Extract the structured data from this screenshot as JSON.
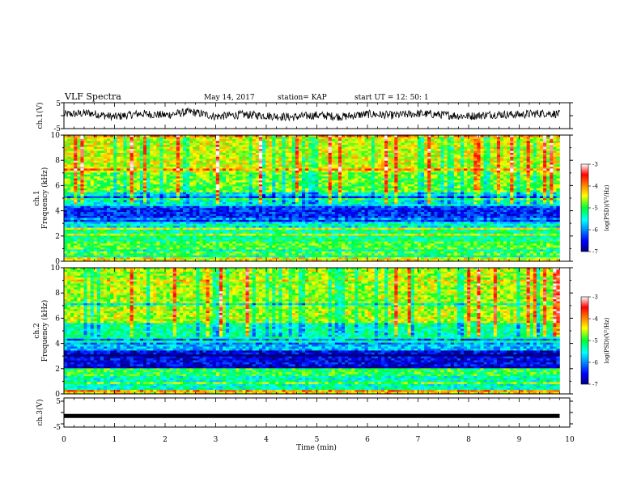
{
  "header": {
    "title": "VLF Spectra",
    "date": "May 14, 2017",
    "station": "station= KAP",
    "start": "start  UT =   12: 50: 1"
  },
  "chart_data": [
    {
      "type": "line",
      "panel": "ch1-waveform",
      "ylabel": "ch.1(V)",
      "ylim": [
        -5,
        5
      ],
      "yticks": [
        "5",
        "-5"
      ],
      "xlim": [
        0,
        10
      ],
      "note": "noisy black voltage trace fluctuating roughly between -3 and 3 V from 0 to ~9.8 min",
      "series": [
        {
          "color": "#000000",
          "x": [
            0,
            0.5,
            1,
            1.5,
            2,
            2.5,
            3,
            3.5,
            4,
            4.5,
            5,
            5.5,
            6,
            6.5,
            7,
            7.5,
            8,
            8.5,
            9,
            9.5,
            9.8
          ],
          "y": [
            0.5,
            1.0,
            -0.5,
            0.8,
            0.2,
            1.5,
            -0.3,
            0.4,
            0.0,
            -0.6,
            0.2,
            -0.4,
            0.6,
            0.1,
            0.8,
            0.3,
            -0.2,
            0.5,
            0.4,
            1.0,
            0.6
          ]
        }
      ]
    },
    {
      "type": "heatmap",
      "panel": "ch1-spectrogram",
      "ylabel": "ch.1\nFrequency (kHz)",
      "xlim": [
        0,
        10
      ],
      "ylim": [
        0,
        10
      ],
      "yticks": [
        "0",
        "2",
        "4",
        "6",
        "8",
        "10"
      ],
      "colorbar": {
        "label": "log(PSD)(V²/Hz)",
        "ticks": [
          "-3",
          "-4",
          "-5",
          "-6",
          "-7"
        ],
        "range": [
          -7,
          -3
        ]
      },
      "time_extent_min": 9.8,
      "bands_khz": [
        {
          "from": 0.0,
          "to": 0.3,
          "level": -4.4
        },
        {
          "from": 0.3,
          "to": 1.6,
          "level": -4.9
        },
        {
          "from": 1.6,
          "to": 2.6,
          "level": -5.2
        },
        {
          "from": 2.6,
          "to": 3.3,
          "level": -5.6
        },
        {
          "from": 3.3,
          "to": 4.2,
          "level": -6.4
        },
        {
          "from": 4.2,
          "to": 5.4,
          "level": -5.5
        },
        {
          "from": 5.4,
          "to": 7.0,
          "level": -4.8
        },
        {
          "from": 7.0,
          "to": 10.0,
          "level": -4.5
        }
      ]
    },
    {
      "type": "heatmap",
      "panel": "ch2-spectrogram",
      "ylabel": "ch.2\nFrequency (kHz)",
      "xlim": [
        0,
        10
      ],
      "ylim": [
        0,
        10
      ],
      "yticks": [
        "0",
        "2",
        "4",
        "6",
        "8",
        "10"
      ],
      "colorbar": {
        "label": "log(PSD)(V²/Hz)",
        "ticks": [
          "-3",
          "-4",
          "-5",
          "-6",
          "-7"
        ],
        "range": [
          -7,
          -3
        ]
      },
      "time_extent_min": 9.8,
      "bands_khz": [
        {
          "from": 0.0,
          "to": 0.3,
          "level": -4.4
        },
        {
          "from": 0.3,
          "to": 1.4,
          "level": -5.4
        },
        {
          "from": 1.4,
          "to": 2.0,
          "level": -5.0
        },
        {
          "from": 2.0,
          "to": 3.5,
          "level": -6.6
        },
        {
          "from": 3.5,
          "to": 4.1,
          "level": -5.8
        },
        {
          "from": 4.1,
          "to": 5.6,
          "level": -5.3
        },
        {
          "from": 5.6,
          "to": 10.0,
          "level": -4.6
        }
      ]
    },
    {
      "type": "line",
      "panel": "ch3-waveform",
      "ylabel": "ch.3(V)",
      "ylim": [
        -5,
        5
      ],
      "yticks": [
        "5",
        "-5"
      ],
      "xlim": [
        0,
        10
      ],
      "xlabel": "Time (min)",
      "xticks": [
        "0",
        "1",
        "2",
        "3",
        "4",
        "5",
        "6",
        "7",
        "8",
        "9",
        "10"
      ],
      "series": [
        {
          "color": "#000000",
          "x": [
            0,
            9.8
          ],
          "y": [
            -1.5,
            -1.5
          ]
        }
      ]
    }
  ]
}
